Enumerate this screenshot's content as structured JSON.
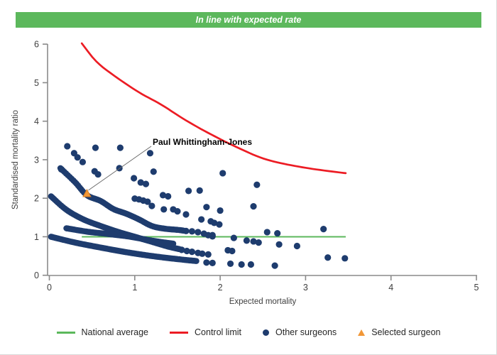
{
  "header": {
    "title": "In line with expected rate"
  },
  "colors": {
    "header_green": "#5cb85c",
    "national_average": "#5cb85c",
    "control_limit": "#ec1c24",
    "other_surgeons": "#1e3c6e",
    "selected_surgeon_fill": "#f19737",
    "selected_surgeon_stroke": "#d87d1f",
    "axis": "#8a8a8a",
    "tick_text": "#404040",
    "annotation_line": "#666666"
  },
  "chart_data": {
    "type": "scatter",
    "title": "",
    "xlabel": "Expected mortality",
    "ylabel": "Standardised mortality ratio",
    "xlim": [
      0,
      5
    ],
    "ylim": [
      0,
      6
    ],
    "x_ticks": [
      "0",
      "1",
      "2",
      "3",
      "4",
      "5"
    ],
    "y_ticks": [
      "0",
      "1",
      "2",
      "3",
      "4",
      "5",
      "6"
    ],
    "grid": false,
    "legend_position": "bottom",
    "national_average": {
      "y": 1.0,
      "x_start": 0.38,
      "x_end": 3.47
    },
    "control_limit_points": [
      [
        0.38,
        6.02
      ],
      [
        0.55,
        5.55
      ],
      [
        0.76,
        5.18
      ],
      [
        1.05,
        4.75
      ],
      [
        1.31,
        4.43
      ],
      [
        1.6,
        4.02
      ],
      [
        1.9,
        3.65
      ],
      [
        2.2,
        3.32
      ],
      [
        2.55,
        3.0
      ],
      [
        3.0,
        2.79
      ],
      [
        3.47,
        2.65
      ]
    ],
    "selected_surgeon": {
      "label": "Paul Whittingham-Jones",
      "x": 0.44,
      "y": 2.04
    },
    "annotation": {
      "label": "Paul Whittingham-Jones",
      "text_x": 1.2,
      "text_y": 3.42,
      "points_to_x": 0.44,
      "points_to_y": 2.04
    },
    "other_surgeons_bands": [
      {
        "name": "band-smr1",
        "points": [
          [
            0.02,
            1.0
          ],
          [
            0.3,
            0.85
          ],
          [
            0.6,
            0.72
          ],
          [
            0.9,
            0.6
          ],
          [
            1.2,
            0.5
          ],
          [
            1.5,
            0.42
          ],
          [
            1.72,
            0.37
          ]
        ]
      },
      {
        "name": "band-smr2",
        "points": [
          [
            0.02,
            2.05
          ],
          [
            0.2,
            1.7
          ],
          [
            0.4,
            1.45
          ],
          [
            0.6,
            1.28
          ],
          [
            0.8,
            1.13
          ],
          [
            1.0,
            1.0
          ],
          [
            1.2,
            0.87
          ],
          [
            1.4,
            0.74
          ],
          [
            1.52,
            0.68
          ]
        ]
      },
      {
        "name": "band-selected",
        "points": [
          [
            0.13,
            2.78
          ],
          [
            0.3,
            2.42
          ],
          [
            0.44,
            2.08
          ],
          [
            0.6,
            1.93
          ],
          [
            0.75,
            1.72
          ],
          [
            0.9,
            1.6
          ],
          [
            1.05,
            1.45
          ],
          [
            1.2,
            1.28
          ],
          [
            1.35,
            1.21
          ],
          [
            1.5,
            1.18
          ],
          [
            1.57,
            1.16
          ]
        ]
      },
      {
        "name": "band-low",
        "points": [
          [
            0.2,
            1.22
          ],
          [
            0.45,
            1.13
          ],
          [
            0.7,
            1.07
          ],
          [
            0.95,
            1.0
          ],
          [
            1.2,
            0.9
          ],
          [
            1.45,
            0.82
          ]
        ]
      }
    ],
    "other_surgeons": [
      [
        0.14,
        2.75
      ],
      [
        0.21,
        3.35
      ],
      [
        0.29,
        3.17
      ],
      [
        0.33,
        3.06
      ],
      [
        0.39,
        2.94
      ],
      [
        0.53,
        2.7
      ],
      [
        0.54,
        3.31
      ],
      [
        0.57,
        2.62
      ],
      [
        0.82,
        2.78
      ],
      [
        0.83,
        3.31
      ],
      [
        0.99,
        2.52
      ],
      [
        1.0,
        1.99
      ],
      [
        1.05,
        1.97
      ],
      [
        1.07,
        2.41
      ],
      [
        1.1,
        1.94
      ],
      [
        1.13,
        2.37
      ],
      [
        1.15,
        1.91
      ],
      [
        1.18,
        3.17
      ],
      [
        1.2,
        1.8
      ],
      [
        1.22,
        2.69
      ],
      [
        1.33,
        2.08
      ],
      [
        1.34,
        1.71
      ],
      [
        1.39,
        2.05
      ],
      [
        1.45,
        1.71
      ],
      [
        1.5,
        1.66
      ],
      [
        1.55,
        0.66
      ],
      [
        1.6,
        1.15
      ],
      [
        1.6,
        1.58
      ],
      [
        1.61,
        0.63
      ],
      [
        1.63,
        2.19
      ],
      [
        1.67,
        0.61
      ],
      [
        1.67,
        1.14
      ],
      [
        1.74,
        0.58
      ],
      [
        1.74,
        1.12
      ],
      [
        1.76,
        2.2
      ],
      [
        1.78,
        1.45
      ],
      [
        1.79,
        0.56
      ],
      [
        1.81,
        1.08
      ],
      [
        1.84,
        0.33
      ],
      [
        1.84,
        1.77
      ],
      [
        1.86,
        0.54
      ],
      [
        1.86,
        1.04
      ],
      [
        1.89,
        1.4
      ],
      [
        1.91,
        0.32
      ],
      [
        1.91,
        1.01
      ],
      [
        1.91,
        1.04
      ],
      [
        1.93,
        1.36
      ],
      [
        1.99,
        1.32
      ],
      [
        2.0,
        1.68
      ],
      [
        2.03,
        2.65
      ],
      [
        2.09,
        0.65
      ],
      [
        2.12,
        0.3
      ],
      [
        2.14,
        0.63
      ],
      [
        2.16,
        0.97
      ],
      [
        2.25,
        0.28
      ],
      [
        2.31,
        0.9
      ],
      [
        2.36,
        0.28
      ],
      [
        2.39,
        0.88
      ],
      [
        2.39,
        1.79
      ],
      [
        2.43,
        2.35
      ],
      [
        2.45,
        0.85
      ],
      [
        2.55,
        1.12
      ],
      [
        2.64,
        0.25
      ],
      [
        2.67,
        1.09
      ],
      [
        2.69,
        0.8
      ],
      [
        2.9,
        0.76
      ],
      [
        3.21,
        1.2
      ],
      [
        3.26,
        0.46
      ],
      [
        3.46,
        0.44
      ]
    ]
  },
  "legend": {
    "items": [
      {
        "label": "National average",
        "type": "line",
        "color": "#5cb85c"
      },
      {
        "label": "Control limit",
        "type": "line",
        "color": "#ec1c24"
      },
      {
        "label": "Other surgeons",
        "type": "dot",
        "color": "#1e3c6e"
      },
      {
        "label": "Selected surgeon",
        "type": "triangle",
        "color": "#f19737"
      }
    ]
  }
}
